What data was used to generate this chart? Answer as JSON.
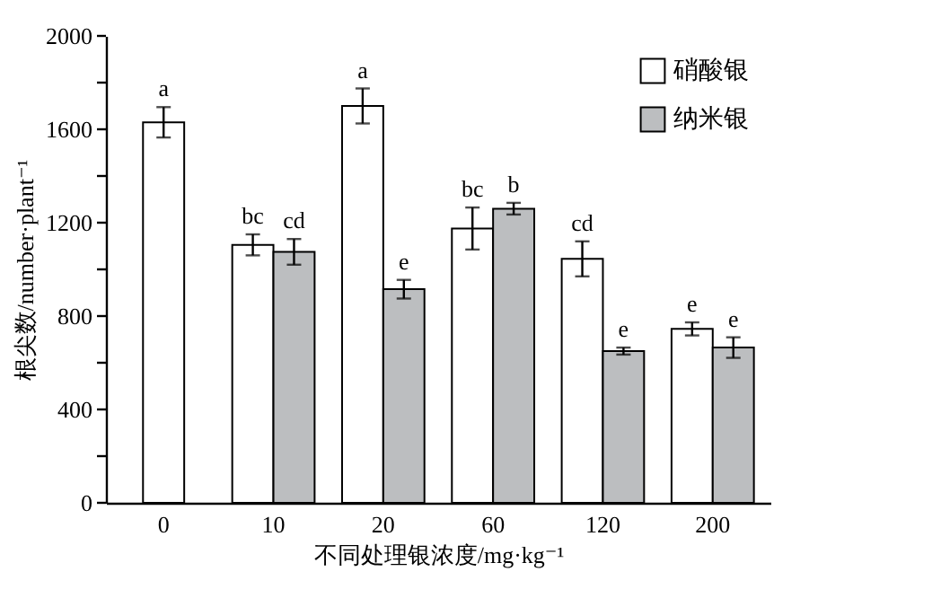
{
  "chart_data": {
    "type": "bar",
    "categories": [
      "0",
      "10",
      "20",
      "60",
      "120",
      "200"
    ],
    "series": [
      {
        "color": "#ffffff",
        "values": [
          1630,
          null,
          null,
          null,
          null,
          null
        ],
        "errors": [
          65,
          null,
          null,
          null,
          null,
          null
        ],
        "value_labels": [
          "a",
          null,
          null,
          null,
          null,
          null
        ]
      },
      {
        "name": "硝酸银",
        "color": "#ffffff",
        "values": [
          null,
          1105,
          1700,
          1175,
          1045,
          745
        ],
        "errors": [
          null,
          45,
          75,
          90,
          75,
          28
        ],
        "value_labels": [
          null,
          "bc",
          "a",
          "bc",
          "cd",
          "e"
        ]
      },
      {
        "name": "纳米银",
        "color": "#bcbec0",
        "values": [
          null,
          1075,
          915,
          1260,
          650,
          665
        ],
        "errors": [
          null,
          55,
          40,
          25,
          15,
          44
        ],
        "value_labels": [
          null,
          "cd",
          "e",
          "b",
          "e",
          "e"
        ]
      }
    ],
    "xlabel": "不同处理银浓度/mg·kg⁻¹",
    "ylabel": "根尖数/number·plant⁻¹",
    "ylim": [
      0,
      2000
    ],
    "yticks": [
      0,
      {
        "value": 200,
        "label": null
      },
      400,
      {
        "value": 600,
        "label": null
      },
      800,
      {
        "value": 1000,
        "label": null
      },
      1200,
      {
        "value": 1400,
        "label": null
      },
      1600,
      {
        "value": 1800,
        "label": null
      },
      2000
    ],
    "legend": "top right",
    "grid": false
  }
}
